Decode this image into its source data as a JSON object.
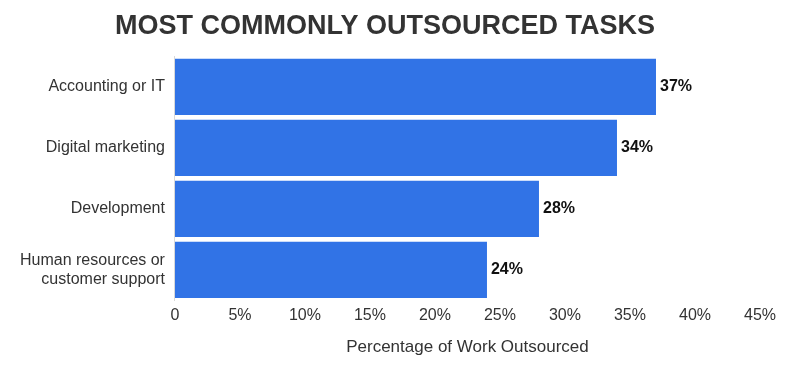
{
  "chart_data": {
    "type": "bar",
    "orientation": "horizontal",
    "title": "MOST COMMONLY OUTSOURCED TASKS",
    "x_label": "Percentage of Work Outsourced",
    "categories": [
      "Accounting or IT",
      "Digital marketing",
      "Development",
      "Human resources or customer support"
    ],
    "values": [
      37,
      34,
      28,
      24
    ],
    "value_labels": [
      "37%",
      "34%",
      "28%",
      "24%"
    ],
    "data_labels": true,
    "color": "#3173e6",
    "xlim": [
      0,
      45
    ],
    "xticks": [
      0,
      {
        "value": 5,
        "label": "5%"
      },
      {
        "value": 10,
        "label": "10%"
      },
      {
        "value": 15,
        "label": "15%"
      },
      {
        "value": 20,
        "label": "20%"
      },
      {
        "value": 25,
        "label": "25%"
      },
      {
        "value": 30,
        "label": "30%"
      },
      {
        "value": 35,
        "label": "35%"
      },
      {
        "value": 40,
        "label": "40%"
      },
      {
        "value": 45,
        "label": "45%"
      }
    ],
    "grid": false
  }
}
